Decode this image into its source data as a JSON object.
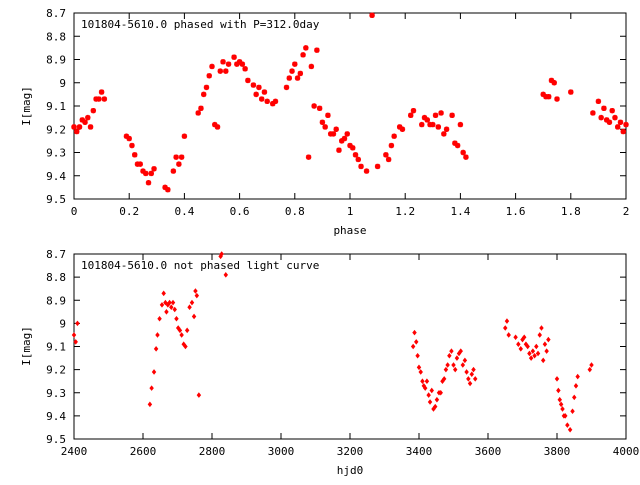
{
  "chart_data": [
    {
      "type": "scatter",
      "title": "101804-5610.0 phased with P=312.0day",
      "xlabel": "phase",
      "ylabel": "I[mag]",
      "xlim": [
        0,
        2
      ],
      "ylim": [
        9.5,
        8.7
      ],
      "y_inverted": true,
      "x_ticks": [
        "0",
        "0.2",
        "0.4",
        "0.6",
        "0.8",
        "1",
        "1.2",
        "1.4",
        "1.6",
        "1.8",
        "2"
      ],
      "y_ticks": [
        "8.7",
        "8.8",
        "8.9",
        "9",
        "9.1",
        "9.2",
        "9.3",
        "9.4",
        "9.5"
      ],
      "marker": "star",
      "color": "#ff0000",
      "grid": false,
      "legend": "none",
      "series": [
        {
          "x": [
            0.0,
            0.01,
            0.02,
            0.03,
            0.04,
            0.05,
            0.06,
            0.07,
            0.08,
            0.09,
            0.1,
            0.11,
            0.19,
            0.2,
            0.21,
            0.22,
            0.23,
            0.24,
            0.25,
            0.26,
            0.27,
            0.28,
            0.29,
            0.33,
            0.34,
            0.36,
            0.37,
            0.38,
            0.39,
            0.4,
            0.45,
            0.46,
            0.47,
            0.48,
            0.49,
            0.5,
            0.51,
            0.52,
            0.53,
            0.54,
            0.55,
            0.56,
            0.58,
            0.59,
            0.6,
            0.61,
            0.62,
            0.63,
            0.65,
            0.66,
            0.67,
            0.68,
            0.69,
            0.7,
            0.72,
            0.73,
            0.77,
            0.78,
            0.79,
            0.8,
            0.81,
            0.82,
            0.83,
            0.84,
            0.85,
            0.86,
            0.87,
            0.88,
            0.89,
            0.9,
            0.91,
            0.92,
            0.93,
            0.94,
            0.95,
            0.96,
            0.97,
            0.98,
            0.99,
            1.0,
            1.01,
            1.02,
            1.03,
            1.04,
            1.06,
            1.08,
            1.1,
            1.13,
            1.14,
            1.15,
            1.16,
            1.18,
            1.19,
            1.22,
            1.23,
            1.26,
            1.27,
            1.28,
            1.29,
            1.3,
            1.31,
            1.32,
            1.33,
            1.34,
            1.35,
            1.37,
            1.38,
            1.39,
            1.4,
            1.41,
            1.42,
            1.7,
            1.71,
            1.72,
            1.73,
            1.74,
            1.75,
            1.8,
            1.88,
            1.9,
            1.91,
            1.92,
            1.93,
            1.94,
            1.95,
            1.96,
            1.97,
            1.98,
            1.99,
            2.0
          ],
          "y": [
            9.19,
            9.21,
            9.19,
            9.16,
            9.17,
            9.15,
            9.19,
            9.12,
            9.07,
            9.07,
            9.04,
            9.07,
            9.23,
            9.24,
            9.27,
            9.31,
            9.35,
            9.35,
            9.38,
            9.39,
            9.43,
            9.39,
            9.37,
            9.45,
            9.46,
            9.38,
            9.32,
            9.35,
            9.32,
            9.23,
            9.13,
            9.11,
            9.05,
            9.02,
            8.97,
            8.93,
            9.18,
            9.19,
            8.95,
            8.91,
            8.95,
            8.92,
            8.89,
            8.92,
            8.91,
            8.92,
            8.94,
            8.99,
            9.01,
            9.05,
            9.02,
            9.07,
            9.04,
            9.08,
            9.09,
            9.08,
            9.02,
            8.98,
            8.95,
            8.92,
            8.98,
            8.96,
            8.88,
            8.85,
            9.32,
            8.93,
            9.1,
            8.86,
            9.11,
            9.17,
            9.19,
            9.14,
            9.22,
            9.22,
            9.2,
            9.29,
            9.25,
            9.24,
            9.22,
            9.27,
            9.28,
            9.31,
            9.33,
            9.36,
            9.38,
            8.71,
            9.36,
            9.31,
            9.33,
            9.27,
            9.23,
            9.19,
            9.2,
            9.14,
            9.12,
            9.18,
            9.15,
            9.16,
            9.18,
            9.18,
            9.14,
            9.19,
            9.13,
            9.22,
            9.2,
            9.14,
            9.26,
            9.27,
            9.18,
            9.3,
            9.32,
            9.05,
            9.06,
            9.06,
            8.99,
            9.0,
            9.07,
            9.04,
            9.13,
            9.08,
            9.15,
            9.11,
            9.16,
            9.17,
            9.12,
            9.15,
            9.19,
            9.17,
            9.21,
            9.18
          ]
        }
      ]
    },
    {
      "type": "scatter",
      "title": "101804-5610.0 not phased light curve",
      "xlabel": "hjd0",
      "ylabel": "I[mag]",
      "xlim": [
        2400,
        4000
      ],
      "ylim": [
        9.5,
        8.7
      ],
      "y_inverted": true,
      "x_ticks": [
        "2400",
        "2600",
        "2800",
        "3000",
        "3200",
        "3400",
        "3600",
        "3800",
        "4000"
      ],
      "y_ticks": [
        "8.7",
        "8.8",
        "8.9",
        "9",
        "9.1",
        "9.2",
        "9.3",
        "9.4",
        "9.5"
      ],
      "marker": "diamond",
      "color": "#ff0000",
      "grid": false,
      "legend": "none",
      "series": [
        {
          "x": [
            2400,
            2405,
            2410,
            2620,
            2625,
            2632,
            2638,
            2642,
            2648,
            2655,
            2660,
            2665,
            2668,
            2672,
            2677,
            2682,
            2687,
            2692,
            2697,
            2702,
            2707,
            2712,
            2718,
            2723,
            2728,
            2735,
            2742,
            2748,
            2752,
            2756,
            2762,
            2825,
            2828,
            2840,
            3383,
            3387,
            3392,
            3396,
            3400,
            3405,
            3410,
            3414,
            3418,
            3423,
            3428,
            3432,
            3437,
            3442,
            3447,
            3452,
            3458,
            3463,
            3468,
            3473,
            3478,
            3483,
            3488,
            3494,
            3500,
            3505,
            3510,
            3516,
            3521,
            3527,
            3533,
            3538,
            3543,
            3548,
            3553,
            3558,
            3563,
            3650,
            3655,
            3660,
            3680,
            3688,
            3695,
            3700,
            3705,
            3710,
            3715,
            3720,
            3725,
            3730,
            3735,
            3740,
            3745,
            3750,
            3755,
            3760,
            3765,
            3770,
            3775,
            3800,
            3804,
            3808,
            3812,
            3816,
            3820,
            3824,
            3830,
            3838,
            3845,
            3850,
            3855,
            3860,
            3895,
            3900
          ],
          "y": [
            9.05,
            9.08,
            9.0,
            9.35,
            9.28,
            9.21,
            9.11,
            9.05,
            8.98,
            8.92,
            8.87,
            8.91,
            8.95,
            8.92,
            8.91,
            8.93,
            8.91,
            8.94,
            8.98,
            9.02,
            9.03,
            9.05,
            9.09,
            9.1,
            9.03,
            8.93,
            8.91,
            8.97,
            8.86,
            8.88,
            9.31,
            8.71,
            8.7,
            8.79,
            9.1,
            9.04,
            9.08,
            9.14,
            9.19,
            9.21,
            9.25,
            9.27,
            9.28,
            9.25,
            9.31,
            9.34,
            9.29,
            9.37,
            9.36,
            9.33,
            9.3,
            9.3,
            9.25,
            9.24,
            9.2,
            9.18,
            9.14,
            9.12,
            9.18,
            9.2,
            9.15,
            9.13,
            9.12,
            9.18,
            9.16,
            9.21,
            9.24,
            9.26,
            9.22,
            9.2,
            9.24,
            9.02,
            8.99,
            9.05,
            9.06,
            9.09,
            9.11,
            9.07,
            9.06,
            9.09,
            9.1,
            9.13,
            9.15,
            9.12,
            9.14,
            9.1,
            9.13,
            9.05,
            9.02,
            9.16,
            9.09,
            9.12,
            9.07,
            9.24,
            9.29,
            9.33,
            9.35,
            9.37,
            9.4,
            9.4,
            9.44,
            9.46,
            9.38,
            9.32,
            9.27,
            9.23,
            9.2,
            9.18
          ]
        }
      ]
    }
  ]
}
